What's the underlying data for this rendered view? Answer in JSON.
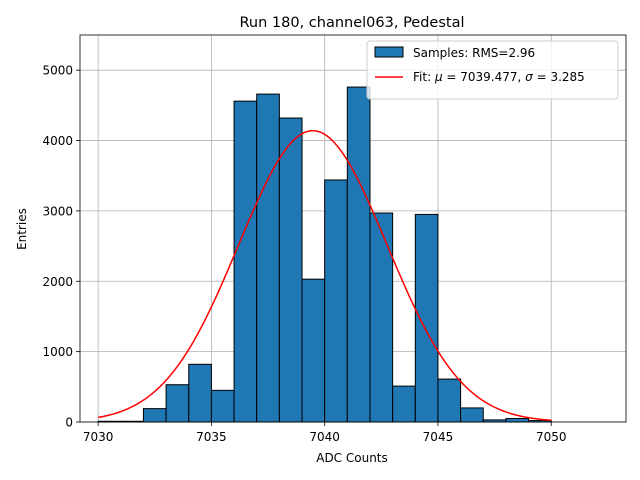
{
  "chart_data": {
    "type": "bar",
    "title": "Run 180, channel063, Pedestal",
    "xlabel": "ADC Counts",
    "ylabel": "Entries",
    "xlim": [
      7029.2,
      7053.3
    ],
    "ylim": [
      0,
      5500
    ],
    "xticks": [
      7030,
      7035,
      7040,
      7045,
      7050
    ],
    "yticks": [
      0,
      1000,
      2000,
      3000,
      4000,
      5000
    ],
    "grid": true,
    "legend_position": "upper-right",
    "bins": {
      "edges_start": 7030,
      "bin_width": 1,
      "values": [
        10,
        10,
        190,
        530,
        820,
        450,
        4560,
        4660,
        4320,
        2030,
        3440,
        4760,
        2970,
        510,
        2950,
        610,
        200,
        30,
        50,
        20,
        0,
        0
      ]
    },
    "fit": {
      "mu": 7039.477,
      "sigma": 3.285,
      "amplitude": 4140,
      "x_range": [
        7030,
        7050
      ]
    },
    "colors": {
      "bars": "#1f77b4",
      "bar_edge": "#000000",
      "fit_line": "#ff0000",
      "grid": "#b0b0b0"
    },
    "legend": {
      "samples_label": "Samples: RMS=2.96",
      "fit_label_prefix": "Fit: ",
      "mu_symbol": "μ",
      "fit_label_mid": " = 7039.477, ",
      "sigma_symbol": "σ",
      "fit_label_end": " = 3.285"
    }
  }
}
